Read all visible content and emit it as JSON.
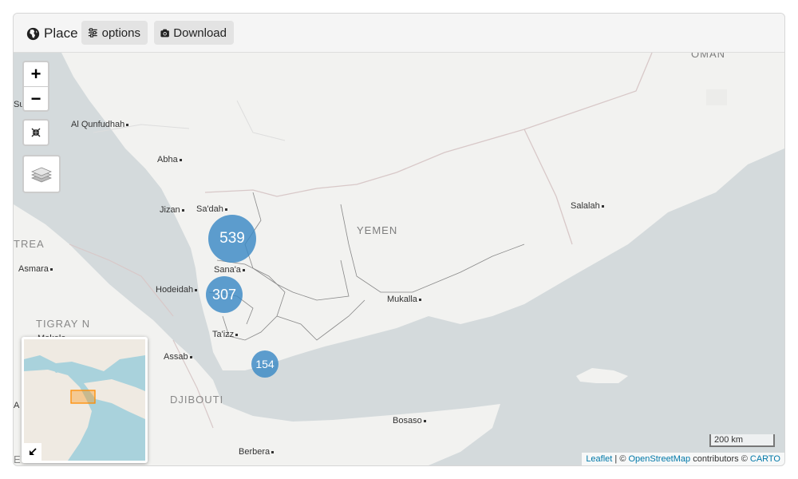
{
  "toolbar": {
    "place_label": "Place",
    "options_label": "options",
    "download_label": "Download",
    "icons": {
      "place": "globe-africa-icon",
      "options": "sliders-icon",
      "download": "camera-icon"
    }
  },
  "map": {
    "countries": {
      "yemen": "YEMEN",
      "oman": "OMAN",
      "eritrea": "TREA",
      "tigray": "TIGRAY N",
      "djibouti": "DJIBOUTI",
      "ethiopia": "ETHIOPIA"
    },
    "cities": {
      "qunfudhah": "Al Qunfudhah",
      "abha": "Abha",
      "jizan": "Jizan",
      "sadah": "Sa'dah",
      "sanaa": "Sana'a",
      "hodeidah": "Hodeidah",
      "taizz": "Ta'izz",
      "mukalla": "Mukalla",
      "salalah": "Salalah",
      "asmara": "Asmara",
      "mekele": "Mekele",
      "assab": "Assab",
      "bosaso": "Bosaso",
      "berbera": "Berbera",
      "edge_top": "Sud",
      "edge_mid": "A"
    },
    "clusters": [
      {
        "count": "539"
      },
      {
        "count": "307"
      },
      {
        "count": "154"
      }
    ],
    "controls": {
      "zoom_in": "+",
      "zoom_out": "−"
    },
    "scale_label": "200 km",
    "attribution": {
      "leaflet": "Leaflet",
      "sep": " | © ",
      "osm": "OpenStreetMap",
      "contrib": " contributors © ",
      "carto": "CARTO"
    },
    "colors": {
      "water": "#d4dadc",
      "land": "#f2f2f0",
      "cluster": "#3a89c4"
    }
  }
}
